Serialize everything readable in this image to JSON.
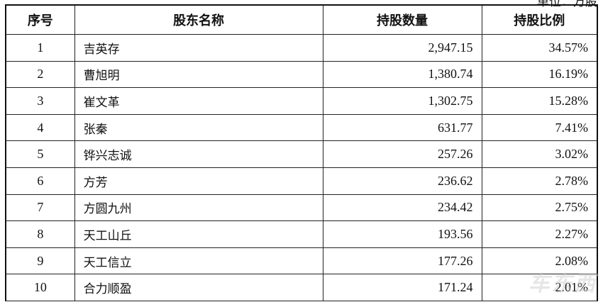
{
  "unit_label": "单位：万股",
  "headers": [
    "序号",
    "股东名称",
    "持股数量",
    "持股比例"
  ],
  "rows": [
    [
      "1",
      "吉英存",
      "2,947.15",
      "34.57%"
    ],
    [
      "2",
      "曹旭明",
      "1,380.74",
      "16.19%"
    ],
    [
      "3",
      "崔文革",
      "1,302.75",
      "15.28%"
    ],
    [
      "4",
      "张秦",
      "631.77",
      "7.41%"
    ],
    [
      "5",
      "铧兴志诚",
      "257.26",
      "3.02%"
    ],
    [
      "6",
      "方芳",
      "236.62",
      "2.78%"
    ],
    [
      "7",
      "方圆九州",
      "234.42",
      "2.75%"
    ],
    [
      "8",
      "天工山丘",
      "193.56",
      "2.27%"
    ],
    [
      "9",
      "天工信立",
      "177.26",
      "2.08%"
    ],
    [
      "10",
      "合力顺盈",
      "171.24",
      "2.01%"
    ]
  ],
  "watermark": "车东西"
}
